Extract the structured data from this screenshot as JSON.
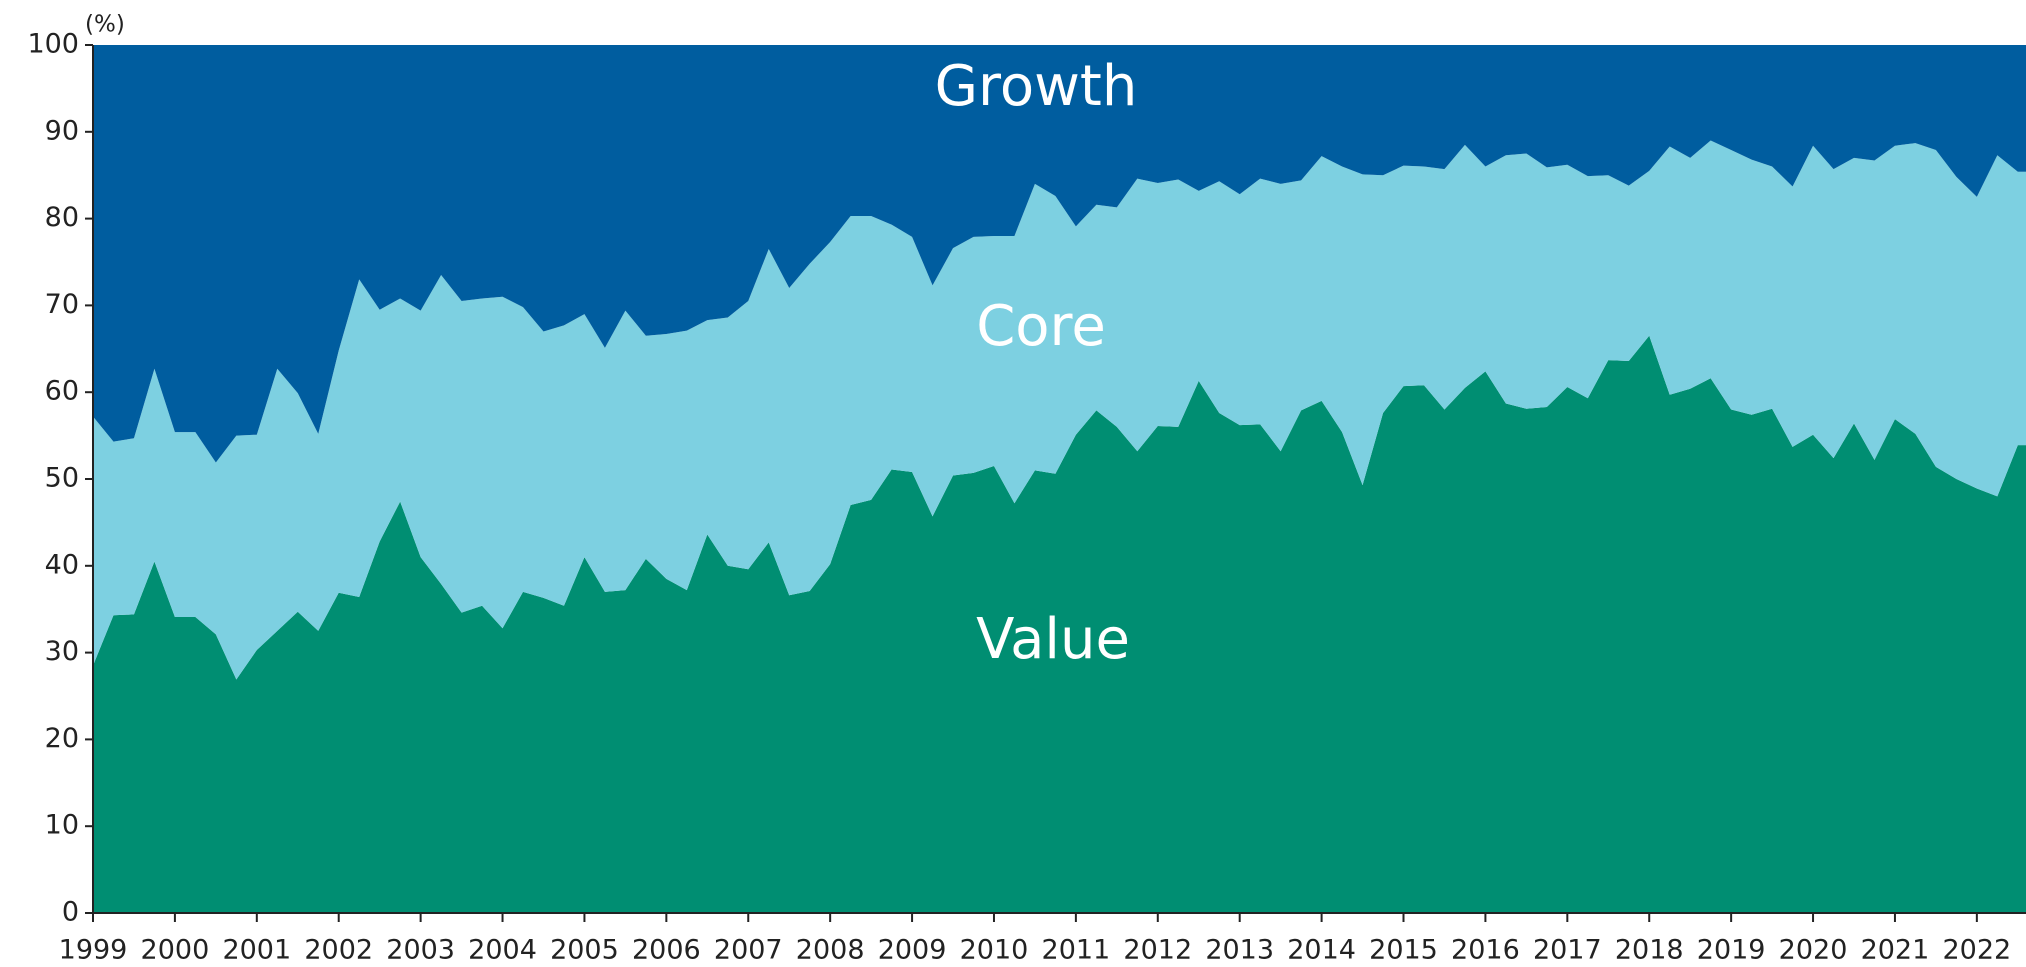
{
  "chart_data": {
    "type": "stacked_area",
    "y_label": "(%)",
    "x": [
      1999,
      1999.25,
      1999.5,
      1999.75,
      2000,
      2000.25,
      2000.5,
      2000.75,
      2001,
      2001.25,
      2001.5,
      2001.75,
      2002,
      2002.25,
      2002.5,
      2002.75,
      2003,
      2003.25,
      2003.5,
      2003.75,
      2004,
      2004.25,
      2004.5,
      2004.75,
      2005,
      2005.25,
      2005.5,
      2005.75,
      2006,
      2006.25,
      2006.5,
      2006.75,
      2007,
      2007.25,
      2007.5,
      2007.75,
      2008,
      2008.25,
      2008.5,
      2008.75,
      2009,
      2009.25,
      2009.5,
      2009.75,
      2010,
      2010.25,
      2010.5,
      2010.75,
      2011,
      2011.25,
      2011.5,
      2011.75,
      2012,
      2012.25,
      2012.5,
      2012.75,
      2013,
      2013.25,
      2013.5,
      2013.75,
      2014,
      2014.25,
      2014.5,
      2014.75,
      2015,
      2015.25,
      2015.5,
      2015.75,
      2016,
      2016.25,
      2016.5,
      2016.75,
      2017,
      2017.25,
      2017.5,
      2017.75,
      2018,
      2018.25,
      2018.5,
      2018.75,
      2019,
      2019.25,
      2019.5,
      2019.75,
      2020,
      2020.25,
      2020.5,
      2020.75,
      2021,
      2021.25,
      2021.5,
      2021.75,
      2022,
      2022.25,
      2022.5
    ],
    "series": [
      {
        "name": "Growth",
        "color": "#008e72",
        "values": [
          28.5,
          34.3,
          34.4,
          40.5,
          34.1,
          34.1,
          32.1,
          26.9,
          30.3,
          32.5,
          34.7,
          32.5,
          36.9,
          36.4,
          42.8,
          47.4,
          41.0,
          37.9,
          34.6,
          35.4,
          32.8,
          37.0,
          36.3,
          35.4,
          41.0,
          37.0,
          37.2,
          40.8,
          38.5,
          37.2,
          43.6,
          40.0,
          39.6,
          42.7,
          36.6,
          37.1,
          40.2,
          47.0,
          47.6,
          51.1,
          50.8,
          45.7,
          50.4,
          50.7,
          51.5,
          47.2,
          51.0,
          50.6,
          55.1,
          57.9,
          56.0,
          53.2,
          56.1,
          56.0,
          61.3,
          57.6,
          56.2,
          56.3,
          53.2,
          57.9,
          59.0,
          55.4,
          49.3,
          57.6,
          60.7,
          60.8,
          58.0,
          60.5,
          62.4,
          58.7,
          58.1,
          58.3,
          60.6,
          59.3,
          63.7,
          63.6,
          66.5,
          59.7,
          60.4,
          61.6,
          58.0,
          57.4,
          58.1,
          53.7,
          55.1,
          52.4,
          56.4,
          52.2,
          56.9,
          55.2,
          51.4,
          50.0,
          48.9,
          48.0,
          53.9
        ]
      },
      {
        "name": "Core",
        "color": "#7dd0e1",
        "values": [
          28.7,
          20.0,
          20.3,
          22.2,
          21.3,
          21.3,
          19.8,
          28.1,
          24.8,
          30.2,
          25.2,
          22.7,
          27.9,
          36.6,
          26.7,
          23.4,
          28.4,
          35.6,
          35.9,
          35.4,
          38.2,
          32.8,
          30.7,
          32.3,
          28.0,
          28.1,
          32.2,
          25.7,
          28.2,
          29.9,
          24.7,
          28.6,
          30.9,
          33.8,
          35.4,
          37.7,
          37.1,
          33.3,
          32.7,
          28.2,
          27.1,
          26.6,
          26.2,
          27.2,
          26.5,
          30.8,
          33.0,
          32.0,
          24.0,
          23.7,
          25.3,
          31.4,
          28.0,
          28.5,
          21.9,
          26.7,
          26.6,
          28.3,
          30.8,
          26.5,
          28.2,
          30.6,
          35.8,
          27.4,
          25.4,
          25.2,
          27.7,
          28.0,
          23.6,
          28.6,
          29.4,
          27.6,
          25.6,
          25.6,
          21.3,
          20.2,
          19.0,
          28.6,
          26.6,
          27.4,
          29.9,
          29.4,
          27.9,
          30.0,
          33.3,
          33.3,
          30.6,
          34.5,
          31.5,
          33.5,
          36.5,
          34.8,
          33.6,
          39.3,
          31.5
        ]
      },
      {
        "name": "Value",
        "color": "#005d9f",
        "values": [
          42.8,
          45.7,
          45.3,
          37.3,
          44.6,
          44.6,
          48.1,
          45.0,
          44.9,
          37.3,
          40.1,
          44.8,
          35.2,
          27.0,
          30.5,
          29.2,
          30.6,
          26.5,
          29.5,
          29.2,
          29.0,
          30.2,
          33.0,
          32.3,
          31.0,
          34.9,
          30.6,
          33.5,
          33.3,
          32.9,
          31.7,
          31.4,
          29.5,
          23.5,
          28.0,
          25.2,
          22.7,
          19.7,
          19.7,
          20.7,
          22.1,
          27.7,
          23.4,
          22.1,
          22.0,
          22.0,
          16.0,
          17.4,
          20.9,
          18.4,
          18.7,
          15.4,
          15.9,
          15.5,
          16.8,
          15.7,
          17.2,
          15.4,
          16.0,
          15.6,
          12.8,
          14.0,
          14.9,
          15.0,
          13.9,
          14.0,
          14.3,
          11.5,
          14.0,
          12.7,
          12.5,
          14.1,
          13.8,
          15.1,
          15.0,
          16.2,
          14.5,
          11.7,
          13.0,
          11.0,
          12.1,
          13.2,
          14.0,
          16.3,
          11.6,
          14.3,
          13.0,
          13.3,
          11.6,
          11.3,
          12.1,
          15.2,
          17.5,
          12.7,
          14.6
        ]
      }
    ],
    "xlim": [
      1999,
      2022.6
    ],
    "xticks": [
      1999,
      2000,
      2001,
      2002,
      2003,
      2004,
      2005,
      2006,
      2007,
      2008,
      2009,
      2010,
      2011,
      2012,
      2013,
      2014,
      2015,
      2016,
      2017,
      2018,
      2019,
      2020,
      2021,
      2022
    ],
    "ylim": [
      0,
      100
    ],
    "yticks": [
      0,
      10,
      20,
      30,
      40,
      50,
      60,
      70,
      80,
      90,
      100
    ],
    "grid": false
  }
}
